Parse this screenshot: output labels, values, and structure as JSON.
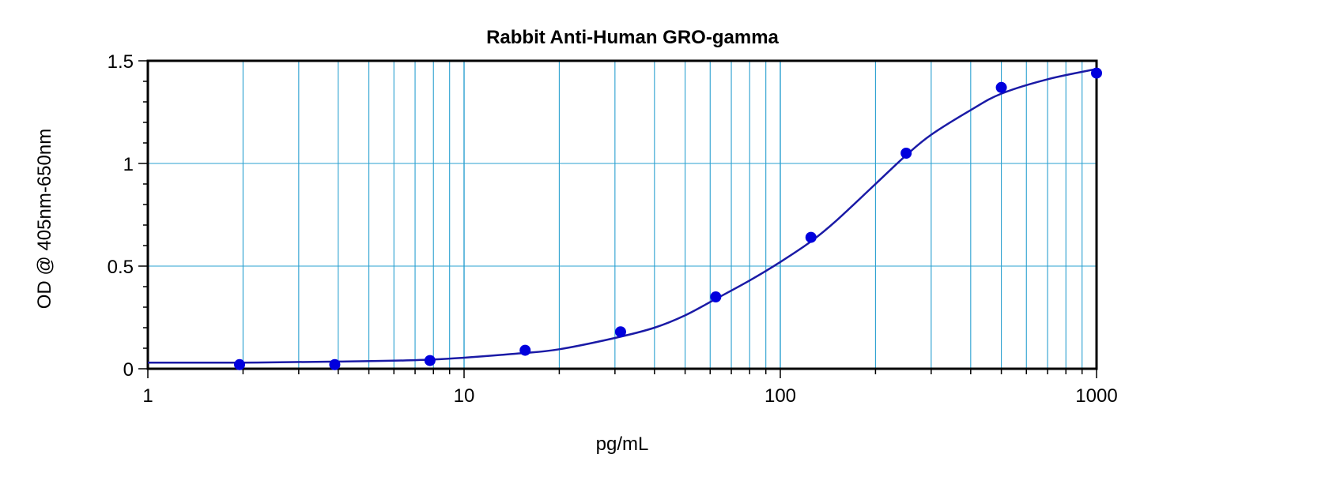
{
  "chart_data": {
    "type": "scatter",
    "title": "Rabbit Anti-Human GRO-gamma",
    "xlabel": "pg/mL",
    "ylabel": "OD @ 405nm-650nm",
    "x_scale": "log",
    "xlim": [
      1,
      1000
    ],
    "ylim": [
      0,
      1.5
    ],
    "x_ticks": [
      1,
      10,
      100,
      1000
    ],
    "x_tick_labels": [
      "1",
      "10",
      "100",
      "1000"
    ],
    "y_ticks": [
      0,
      0.5,
      1,
      1.5
    ],
    "y_tick_labels": [
      "0",
      "0.5",
      "1",
      "1.5"
    ],
    "grid": true,
    "legend": "none",
    "colors": {
      "points": "#0000dd",
      "curve": "#1a1aa6",
      "grid": "#2aa0d0",
      "axes": "#000000"
    },
    "series": [
      {
        "type": "scatter",
        "x": [
          1.95,
          3.9,
          7.8,
          15.6,
          31.25,
          62.5,
          125,
          250,
          500,
          1000
        ],
        "y": [
          0.02,
          0.02,
          0.04,
          0.09,
          0.18,
          0.35,
          0.64,
          1.05,
          1.37,
          1.44
        ]
      },
      {
        "type": "line",
        "x": [
          1,
          2,
          4,
          8,
          15,
          20,
          30,
          40,
          50,
          62.5,
          80,
          100,
          125,
          150,
          200,
          250,
          300,
          400,
          500,
          700,
          1000
        ],
        "y": [
          0.03,
          0.03,
          0.035,
          0.045,
          0.075,
          0.095,
          0.15,
          0.2,
          0.26,
          0.34,
          0.43,
          0.52,
          0.62,
          0.72,
          0.9,
          1.04,
          1.14,
          1.26,
          1.34,
          1.41,
          1.46
        ]
      }
    ]
  }
}
